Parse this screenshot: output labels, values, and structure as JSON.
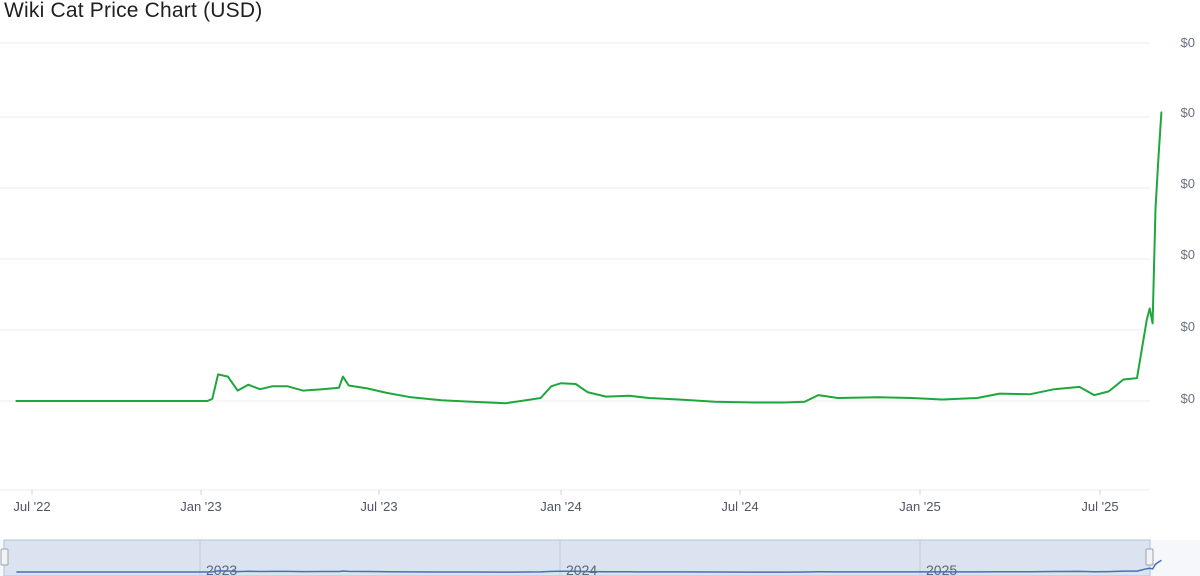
{
  "chart_data": {
    "type": "line",
    "title": "Wiki Cat Price Chart (USD)",
    "xlabel": "",
    "ylabel": "",
    "x_tick_labels": [
      "Jul '22",
      "Jan '23",
      "Jul '23",
      "Jan '24",
      "Jul '24",
      "Jan '25",
      "Jul '25"
    ],
    "y_tick_labels": [
      "$0",
      "$0",
      "$0",
      "$0",
      "$0",
      "$0"
    ],
    "navigator_labels": [
      "2023",
      "2024",
      "2025"
    ],
    "grid": true,
    "colors": {
      "line": "#1ea83c",
      "navigator_fill": "#dbe3f1",
      "navigator_line": "#4a6fb5"
    },
    "series": [
      {
        "points": [
          [
            "2022-06-15",
            0.0
          ],
          [
            "2022-12-28",
            0.0
          ],
          [
            "2023-01-02",
            0.03
          ],
          [
            "2023-01-08",
            0.36
          ],
          [
            "2023-01-18",
            0.33
          ],
          [
            "2023-01-28",
            0.14
          ],
          [
            "2023-02-08",
            0.22
          ],
          [
            "2023-02-20",
            0.16
          ],
          [
            "2023-03-05",
            0.2
          ],
          [
            "2023-03-20",
            0.2
          ],
          [
            "2023-04-05",
            0.14
          ],
          [
            "2023-04-25",
            0.16
          ],
          [
            "2023-05-12",
            0.18
          ],
          [
            "2023-05-16",
            0.33
          ],
          [
            "2023-05-22",
            0.21
          ],
          [
            "2023-06-10",
            0.17
          ],
          [
            "2023-06-30",
            0.11
          ],
          [
            "2023-07-25",
            0.05
          ],
          [
            "2023-08-25",
            0.01
          ],
          [
            "2023-09-25",
            -0.01
          ],
          [
            "2023-10-30",
            -0.03
          ],
          [
            "2023-11-20",
            0.01
          ],
          [
            "2023-12-05",
            0.04
          ],
          [
            "2023-12-16",
            0.2
          ],
          [
            "2023-12-26",
            0.24
          ],
          [
            "2024-01-10",
            0.23
          ],
          [
            "2024-01-22",
            0.12
          ],
          [
            "2024-02-10",
            0.06
          ],
          [
            "2024-03-05",
            0.07
          ],
          [
            "2024-03-25",
            0.04
          ],
          [
            "2024-04-25",
            0.02
          ],
          [
            "2024-06-01",
            -0.01
          ],
          [
            "2024-07-10",
            -0.02
          ],
          [
            "2024-08-12",
            -0.02
          ],
          [
            "2024-09-01",
            -0.01
          ],
          [
            "2024-09-15",
            0.08
          ],
          [
            "2024-10-05",
            0.04
          ],
          [
            "2024-11-15",
            0.05
          ],
          [
            "2024-12-20",
            0.04
          ],
          [
            "2025-01-20",
            0.02
          ],
          [
            "2025-02-25",
            0.04
          ],
          [
            "2025-03-20",
            0.1
          ],
          [
            "2025-04-20",
            0.09
          ],
          [
            "2025-05-15",
            0.16
          ],
          [
            "2025-06-10",
            0.19
          ],
          [
            "2025-06-25",
            0.08
          ],
          [
            "2025-07-10",
            0.13
          ],
          [
            "2025-07-25",
            0.29
          ],
          [
            "2025-08-08",
            0.31
          ],
          [
            "2025-08-18",
            1.1
          ],
          [
            "2025-08-21",
            1.25
          ],
          [
            "2025-08-24",
            1.05
          ],
          [
            "2025-08-27",
            2.6
          ],
          [
            "2025-08-30",
            3.3
          ],
          [
            "2025-09-02",
            3.9
          ]
        ]
      }
    ]
  }
}
